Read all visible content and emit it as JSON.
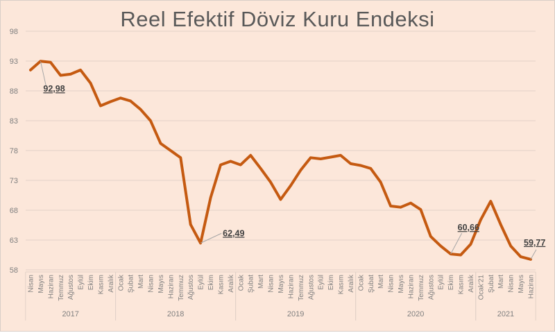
{
  "title": "Reel Efektif Döviz Kuru Endeksi",
  "colors": {
    "background": "#fce7da",
    "line": "#c55a11",
    "grid": "#e2d2c8",
    "text": "#595959"
  },
  "chart_data": {
    "type": "line",
    "title": "Reel Efektif Döviz Kuru Endeksi",
    "xlabel": "",
    "ylabel": "",
    "ylim": [
      58,
      98
    ],
    "yticks": [
      98,
      93,
      88,
      83,
      78,
      73,
      68,
      63,
      58
    ],
    "grid": true,
    "legend": "none",
    "categories": [
      "Nisan",
      "Mayıs",
      "Haziran",
      "Temmuz",
      "Ağustos",
      "Eylül",
      "Ekim",
      "Kasım",
      "Aralık",
      "Ocak",
      "Şubat",
      "Mart",
      "Nisan",
      "Mayıs",
      "Haziran",
      "Temmuz",
      "Ağustos",
      "Eylül",
      "Ekim",
      "Kasım",
      "Aralık",
      "Ocak",
      "Şubat",
      "Mart",
      "Nisan",
      "Mayıs",
      "Haziran",
      "Temmuz",
      "Ağustos",
      "Eylül",
      "Ekim",
      "Kasım",
      "Aralık",
      "Ocak",
      "Şubat",
      "Mart",
      "Nisan",
      "Mayıs",
      "Haziran",
      "Temmuz",
      "Ağustos",
      "Eylül",
      "Ekim",
      "Kasım",
      "Aralık",
      "Ocak'21",
      "Şubat",
      "Mart",
      "Nisan",
      "Mayıs",
      "Haziran"
    ],
    "year_groups": [
      {
        "label": "2017",
        "start": 0,
        "count": 9
      },
      {
        "label": "2018",
        "start": 9,
        "count": 12
      },
      {
        "label": "2019",
        "start": 21,
        "count": 12
      },
      {
        "label": "2020",
        "start": 33,
        "count": 12
      },
      {
        "label": "2021",
        "start": 45,
        "count": 6
      }
    ],
    "series": [
      {
        "name": "Reel Efektif Döviz Kuru Endeksi",
        "values": [
          91.5,
          92.98,
          92.8,
          90.6,
          90.8,
          91.5,
          89.3,
          85.5,
          86.2,
          86.8,
          86.3,
          84.9,
          83.0,
          79.2,
          78.0,
          76.8,
          65.6,
          62.49,
          70.1,
          75.6,
          76.2,
          75.6,
          77.2,
          75.0,
          72.7,
          69.8,
          72.1,
          74.7,
          76.8,
          76.6,
          76.9,
          77.2,
          75.8,
          75.5,
          75.0,
          72.7,
          68.7,
          68.5,
          69.2,
          68.1,
          63.6,
          62.0,
          60.66,
          60.5,
          62.3,
          66.4,
          69.5,
          65.6,
          62.0,
          60.2,
          59.77
        ]
      }
    ],
    "annotations": [
      {
        "index": 1,
        "text": "92,98"
      },
      {
        "index": 17,
        "text": "62,49"
      },
      {
        "index": 42,
        "text": "60,66"
      },
      {
        "index": 50,
        "text": "59,77"
      }
    ]
  }
}
